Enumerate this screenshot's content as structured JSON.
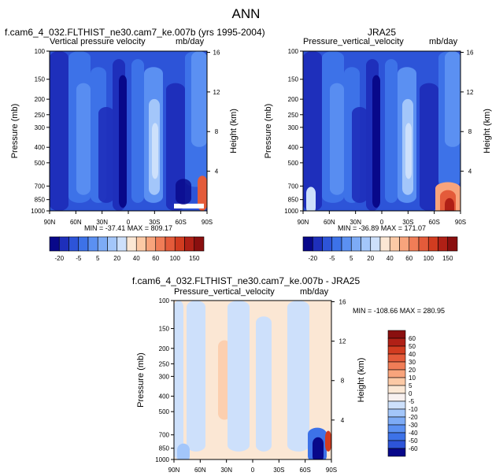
{
  "figure": {
    "title": "ANN"
  },
  "chart_data": [
    {
      "type": "heatmap",
      "title": "f.cam6_4_032.FLTHIST_ne30.cam7_ke.007b (yrs 1995-2004)",
      "subtitle_left": "Vertical pressure velocity",
      "subtitle_right": "mb/day",
      "xlabel": "",
      "ylabel": "Pressure (mb)",
      "ylabel_right": "Height (km)",
      "x_ticks": [
        "90N",
        "60N",
        "30N",
        "0",
        "30S",
        "60S",
        "90S"
      ],
      "y_ticks": [
        "100",
        "150",
        "200",
        "250",
        "300",
        "400",
        "500",
        "700",
        "850",
        "1000"
      ],
      "y_ticks_right": [
        "16",
        "12",
        "8",
        "4"
      ],
      "stats_text": "MIN = -37.41  MAX = 809.17",
      "colorbar": {
        "orientation": "horizontal",
        "labels": [
          "-20",
          "-5",
          "5",
          "20",
          "40",
          "60",
          "100",
          "150"
        ],
        "colors": [
          "#08088a",
          "#1e2fbb",
          "#2d54d8",
          "#3d72e8",
          "#5b90f2",
          "#7dabf6",
          "#a3c6fa",
          "#cde0fb",
          "#fbe7d4",
          "#fcc9a5",
          "#f8a47c",
          "#f07d57",
          "#e45b3a",
          "#d23c20",
          "#b02016",
          "#8a0f0f"
        ]
      },
      "field": "model"
    },
    {
      "type": "heatmap",
      "title": "JRA25",
      "subtitle_left": "Pressure_vertical_velocity",
      "subtitle_right": "mb/day",
      "xlabel": "",
      "ylabel": "Pressure (mb)",
      "ylabel_right": "Height (km)",
      "x_ticks": [
        "90N",
        "60N",
        "30N",
        "0",
        "30S",
        "60S",
        "90S"
      ],
      "y_ticks": [
        "100",
        "150",
        "200",
        "250",
        "300",
        "400",
        "500",
        "700",
        "850",
        "1000"
      ],
      "y_ticks_right": [
        "16",
        "12",
        "8",
        "4"
      ],
      "stats_text": "MIN = -36.89  MAX = 171.07",
      "colorbar": {
        "orientation": "horizontal",
        "labels": [
          "-20",
          "-5",
          "5",
          "20",
          "40",
          "60",
          "100",
          "150"
        ],
        "colors": [
          "#08088a",
          "#1e2fbb",
          "#2d54d8",
          "#3d72e8",
          "#5b90f2",
          "#7dabf6",
          "#a3c6fa",
          "#cde0fb",
          "#fbe7d4",
          "#fcc9a5",
          "#f8a47c",
          "#f07d57",
          "#e45b3a",
          "#d23c20",
          "#b02016",
          "#8a0f0f"
        ]
      },
      "field": "obs"
    },
    {
      "type": "heatmap",
      "title": "f.cam6_4_032.FLTHIST_ne30.cam7_ke.007b - JRA25",
      "subtitle_left": "Pressure_vertical_velocity",
      "subtitle_right": "mb/day",
      "xlabel": "",
      "ylabel": "Pressure (mb)",
      "ylabel_right": "Height (km)",
      "x_ticks": [
        "90N",
        "60N",
        "30N",
        "0",
        "30S",
        "60S",
        "90S"
      ],
      "y_ticks": [
        "100",
        "150",
        "200",
        "250",
        "300",
        "400",
        "500",
        "700",
        "850",
        "1000"
      ],
      "y_ticks_right": [
        "16",
        "12",
        "8",
        "4"
      ],
      "stats_text": "MIN = -108.66  MAX = 280.95",
      "colorbar": {
        "orientation": "vertical",
        "labels": [
          "60",
          "50",
          "40",
          "30",
          "20",
          "10",
          "5",
          "0",
          "-5",
          "-10",
          "-20",
          "-30",
          "-40",
          "-50",
          "-60"
        ],
        "colors": [
          "#8a0f0f",
          "#b02016",
          "#d23c20",
          "#e45b3a",
          "#f07d57",
          "#f8a47c",
          "#fcc9a5",
          "#fbe7d4",
          "#f8f1f0",
          "#cde0fb",
          "#a3c6fa",
          "#7dabf6",
          "#5b90f2",
          "#3d72e8",
          "#2d54d8",
          "#08088a"
        ]
      },
      "field": "diff"
    }
  ]
}
